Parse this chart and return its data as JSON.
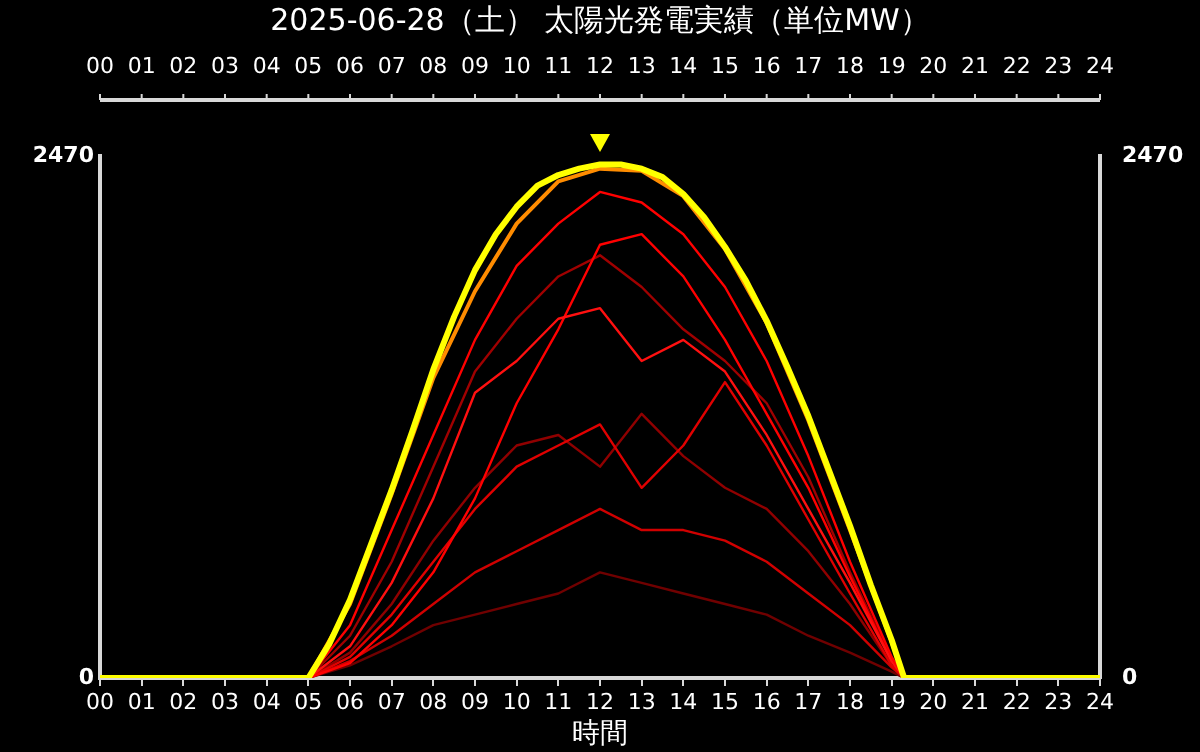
{
  "chart_data": {
    "type": "line",
    "title": "2025-06-28（土） 太陽光発電実績（単位MW）",
    "xlabel": "時間",
    "xlim": [
      0,
      24
    ],
    "xticks": [
      {
        "value": 0,
        "label": "00"
      },
      {
        "value": 1,
        "label": "01"
      },
      {
        "value": 2,
        "label": "02"
      },
      {
        "value": 3,
        "label": "03"
      },
      {
        "value": 4,
        "label": "04"
      },
      {
        "value": 5,
        "label": "05"
      },
      {
        "value": 6,
        "label": "06"
      },
      {
        "value": 7,
        "label": "07"
      },
      {
        "value": 8,
        "label": "08"
      },
      {
        "value": 9,
        "label": "09"
      },
      10,
      11,
      12,
      13,
      14,
      15,
      16,
      17,
      18,
      19,
      20,
      21,
      22,
      23,
      24
    ],
    "x2lim": [
      0,
      24
    ],
    "x2ticks": [
      {
        "value": 0,
        "label": "00"
      },
      {
        "value": 1,
        "label": "01"
      },
      {
        "value": 2,
        "label": "02"
      },
      {
        "value": 3,
        "label": "03"
      },
      {
        "value": 4,
        "label": "04"
      },
      {
        "value": 5,
        "label": "05"
      },
      {
        "value": 6,
        "label": "06"
      },
      {
        "value": 7,
        "label": "07"
      },
      {
        "value": 8,
        "label": "08"
      },
      {
        "value": 9,
        "label": "09"
      },
      10,
      11,
      12,
      13,
      14,
      15,
      16,
      17,
      18,
      19,
      20,
      21,
      22,
      23,
      24
    ],
    "ylim": [
      0,
      2470
    ],
    "yticks": [
      0,
      2470
    ],
    "y2lim": [
      0,
      2470
    ],
    "y2ticks": [
      0,
      2470
    ],
    "grid": false,
    "legend": false,
    "marker": "none",
    "line_style": "solid",
    "series": [
      {
        "color": "#700000",
        "x": [
          0,
          5,
          6,
          7,
          8,
          9,
          10,
          11,
          12,
          13,
          14,
          15,
          16,
          17,
          18,
          19,
          19.3,
          24
        ],
        "values": [
          0,
          0,
          60,
          150,
          250,
          300,
          350,
          400,
          500,
          450,
          400,
          350,
          300,
          200,
          120,
          30,
          0,
          0
        ]
      },
      {
        "color": "#900000",
        "x": [
          0,
          5,
          6,
          7,
          8,
          9,
          10,
          11,
          12,
          13,
          14,
          15,
          16,
          17,
          18,
          19,
          19.3,
          24
        ],
        "values": [
          0,
          0,
          120,
          350,
          650,
          900,
          1100,
          1150,
          1000,
          1250,
          1050,
          900,
          800,
          600,
          350,
          60,
          0,
          0
        ]
      },
      {
        "color": "#a00000",
        "x": [
          0,
          5,
          6,
          7,
          8,
          9,
          10,
          11,
          12,
          13,
          14,
          15,
          16,
          17,
          18,
          19,
          19.3,
          24
        ],
        "values": [
          0,
          0,
          200,
          550,
          1000,
          1450,
          1700,
          1900,
          2000,
          1850,
          1650,
          1500,
          1300,
          950,
          500,
          90,
          0,
          0
        ]
      },
      {
        "color": "#d00000",
        "x": [
          0,
          5,
          6,
          7,
          8,
          9,
          10,
          11,
          12,
          13,
          14,
          15,
          16,
          17,
          18,
          19,
          19.3,
          24
        ],
        "values": [
          0,
          0,
          80,
          200,
          350,
          500,
          600,
          700,
          800,
          700,
          700,
          650,
          550,
          400,
          250,
          50,
          0,
          0
        ]
      },
      {
        "color": "#e00000",
        "x": [
          0,
          5,
          6,
          7,
          8,
          9,
          10,
          11,
          12,
          13,
          14,
          15,
          16,
          17,
          18,
          19,
          19.3,
          24
        ],
        "values": [
          0,
          0,
          100,
          300,
          550,
          800,
          1000,
          1100,
          1200,
          900,
          1100,
          1400,
          1100,
          750,
          400,
          60,
          0,
          0
        ]
      },
      {
        "color": "#ff0000",
        "x": [
          0,
          5,
          6,
          7,
          8,
          9,
          10,
          11,
          12,
          13,
          14,
          15,
          16,
          17,
          18,
          19,
          19.3,
          24
        ],
        "values": [
          0,
          0,
          70,
          250,
          500,
          850,
          1300,
          1650,
          2050,
          2100,
          1900,
          1600,
          1250,
          900,
          480,
          80,
          0,
          0
        ]
      },
      {
        "color": "#ff1010",
        "x": [
          0,
          5,
          6,
          7,
          8,
          9,
          10,
          11,
          12,
          13,
          14,
          15,
          16,
          17,
          18,
          19,
          19.3,
          24
        ],
        "values": [
          0,
          0,
          150,
          450,
          850,
          1350,
          1500,
          1700,
          1750,
          1500,
          1600,
          1450,
          1150,
          800,
          450,
          80,
          0,
          0
        ]
      },
      {
        "color": "#ff0000",
        "x": [
          0,
          5,
          6,
          7,
          8,
          9,
          10,
          11,
          12,
          13,
          14,
          15,
          16,
          17,
          18,
          19,
          19.3,
          24
        ],
        "values": [
          0,
          0,
          250,
          700,
          1150,
          1600,
          1950,
          2150,
          2300,
          2250,
          2100,
          1850,
          1500,
          1050,
          550,
          100,
          0,
          0
        ]
      },
      {
        "color": "#ff8c00",
        "x": [
          0,
          5,
          6,
          7,
          8,
          9,
          10,
          11,
          12,
          13,
          14,
          15,
          16,
          17,
          18,
          19,
          19.3,
          24
        ],
        "values": [
          0,
          0,
          350,
          870,
          1420,
          1830,
          2150,
          2350,
          2410,
          2400,
          2280,
          2030,
          1680,
          1220,
          700,
          170,
          0,
          0
        ]
      },
      {
        "color": "#ffff00",
        "x": [
          0,
          5,
          5.5,
          6,
          6.5,
          7,
          7.5,
          8,
          8.5,
          9,
          9.5,
          10,
          10.5,
          11,
          11.5,
          12,
          12.5,
          13,
          13.5,
          14,
          14.5,
          15,
          15.5,
          16,
          16.5,
          17,
          17.5,
          18,
          18.5,
          19,
          19.3,
          24
        ],
        "values": [
          0,
          0,
          160,
          370,
          630,
          890,
          1170,
          1460,
          1710,
          1930,
          2100,
          2230,
          2330,
          2380,
          2410,
          2430,
          2430,
          2410,
          2370,
          2290,
          2180,
          2040,
          1880,
          1690,
          1470,
          1240,
          980,
          720,
          440,
          180,
          0,
          0
        ]
      }
    ]
  }
}
